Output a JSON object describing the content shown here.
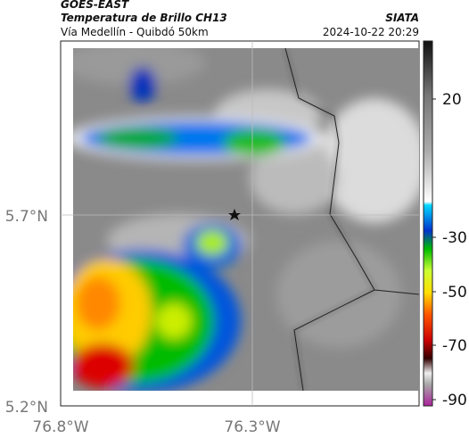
{
  "header": {
    "title": "GOES-EAST",
    "subtitle": "Temperatura de Brillo CH13",
    "source": "SIATA",
    "region": "Vía Medellín - Quibdó 50km",
    "datetime": "2024-10-22 20:29"
  },
  "axes": {
    "latitude_labels": [
      "5.7°N",
      "5.2°N"
    ],
    "longitude_labels": [
      "76.8°W",
      "76.3°W"
    ]
  },
  "colorbar": {
    "tick_labels": [
      "20",
      "-30",
      "-50",
      "-70",
      "-90"
    ]
  }
}
